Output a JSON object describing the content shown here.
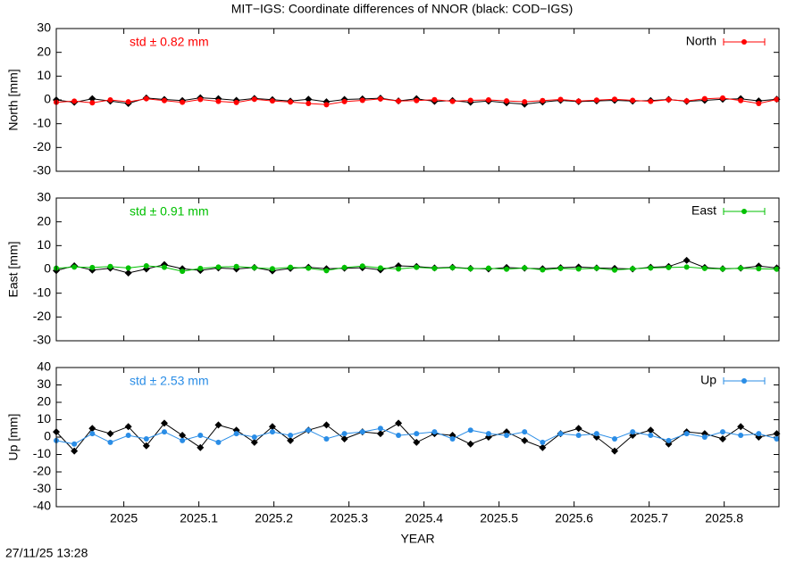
{
  "chart_data": [
    {
      "type": "line",
      "title": "MIT−IGS: Coordinate differences of NNOR (black: COD−IGS)",
      "ylabel": "North [mm]",
      "annotation": "std ± 0.82 mm",
      "xlim": [
        2024.91,
        2025.873
      ],
      "xticks": [
        2025,
        2025.1,
        2025.2,
        2025.3,
        2025.4,
        2025.5,
        2025.6,
        2025.7,
        2025.8
      ],
      "ylim": [
        -30,
        30
      ],
      "yticks": [
        -30,
        -20,
        -10,
        0,
        10,
        20,
        30
      ],
      "legend": "top-right",
      "x": [
        2024.91,
        2024.934,
        2024.958,
        2024.982,
        2025.006,
        2025.03,
        2025.054,
        2025.078,
        2025.102,
        2025.126,
        2025.15,
        2025.174,
        2025.198,
        2025.222,
        2025.246,
        2025.27,
        2025.294,
        2025.318,
        2025.342,
        2025.366,
        2025.39,
        2025.414,
        2025.438,
        2025.462,
        2025.486,
        2025.51,
        2025.534,
        2025.558,
        2025.582,
        2025.606,
        2025.63,
        2025.654,
        2025.678,
        2025.702,
        2025.726,
        2025.75,
        2025.774,
        2025.798,
        2025.822,
        2025.846,
        2025.87
      ],
      "series": [
        {
          "color": "#000000",
          "values": [
            0,
            -1,
            0.5,
            -0.5,
            -1.5,
            0.8,
            0.2,
            -0.3,
            0.9,
            0.5,
            -0.2,
            0.6,
            0.1,
            -0.5,
            0.3,
            -0.8,
            0.2,
            0.4,
            0.7,
            -0.4,
            0.5,
            -0.6,
            -0.3,
            -1,
            -0.5,
            -1.2,
            -1.8,
            -0.9,
            -0.2,
            -0.7,
            -0.4,
            -0.2,
            -0.5,
            -0.3,
            0.2,
            -0.6,
            -0.2,
            0.3,
            0.5,
            -0.4,
            0.3
          ]
        },
        {
          "name": "North",
          "color": "#ff0000",
          "values": [
            -1,
            -0.5,
            -1.2,
            0,
            -0.8,
            0.5,
            -0.3,
            -1,
            0.2,
            -0.6,
            -1.1,
            0.3,
            -0.4,
            -0.9,
            -1.5,
            -2,
            -0.7,
            -0.2,
            0.4,
            -0.5,
            -0.3,
            0.1,
            -0.6,
            -0.2,
            0,
            -0.4,
            -0.8,
            -0.3,
            0.2,
            -0.5,
            -0.1,
            0.3,
            -0.2,
            -0.6,
            0.1,
            -0.4,
            0.5,
            0.8,
            -0.3,
            -1.5,
            0.2
          ]
        }
      ]
    },
    {
      "type": "line",
      "ylabel": "East [mm]",
      "annotation": "std ± 0.91 mm",
      "xlim": [
        2024.91,
        2025.873
      ],
      "xticks": [
        2025,
        2025.1,
        2025.2,
        2025.3,
        2025.4,
        2025.5,
        2025.6,
        2025.7,
        2025.8
      ],
      "ylim": [
        -30,
        30
      ],
      "yticks": [
        -30,
        -20,
        -10,
        0,
        10,
        20,
        30
      ],
      "legend": "top-right",
      "x": [
        2024.91,
        2024.934,
        2024.958,
        2024.982,
        2025.006,
        2025.03,
        2025.054,
        2025.078,
        2025.102,
        2025.126,
        2025.15,
        2025.174,
        2025.198,
        2025.222,
        2025.246,
        2025.27,
        2025.294,
        2025.318,
        2025.342,
        2025.366,
        2025.39,
        2025.414,
        2025.438,
        2025.462,
        2025.486,
        2025.51,
        2025.534,
        2025.558,
        2025.582,
        2025.606,
        2025.63,
        2025.654,
        2025.678,
        2025.702,
        2025.726,
        2025.75,
        2025.774,
        2025.798,
        2025.822,
        2025.846,
        2025.87
      ],
      "series": [
        {
          "color": "#000000",
          "values": [
            -0.5,
            1.5,
            -0.3,
            0.5,
            -1.5,
            0.2,
            2,
            0.3,
            -0.4,
            0.6,
            0.2,
            0.8,
            -0.6,
            0.4,
            0.9,
            0.3,
            0.5,
            0.7,
            -0.2,
            1.5,
            1.2,
            0.6,
            0.9,
            0.4,
            0.2,
            0.8,
            0.5,
            0.3,
            0.7,
            1,
            0.6,
            0.4,
            0.2,
            0.9,
            1.2,
            3.8,
            0.8,
            0.3,
            0.5,
            1.4,
            0.6
          ]
        },
        {
          "name": "East",
          "color": "#00c000",
          "values": [
            0.5,
            1,
            0.8,
            1.2,
            0.6,
            1.5,
            0.9,
            -0.8,
            0.4,
            1,
            1.2,
            0.7,
            0.3,
            0.9,
            0.5,
            -0.5,
            0.8,
            1.4,
            0.6,
            0.2,
            0.9,
            0.4,
            0.7,
            0.3,
            0.5,
            0.1,
            0.6,
            -0.2,
            0.4,
            0.2,
            0.5,
            -0.3,
            0.3,
            0.6,
            0.8,
            1,
            0.4,
            0.2,
            0.5,
            0.3,
            0.1
          ]
        }
      ]
    },
    {
      "type": "line",
      "ylabel": "Up [mm]",
      "xlabel": "YEAR",
      "annotation": "std ± 2.53 mm",
      "xlim": [
        2024.91,
        2025.873
      ],
      "xticks": [
        2025,
        2025.1,
        2025.2,
        2025.3,
        2025.4,
        2025.5,
        2025.6,
        2025.7,
        2025.8
      ],
      "ylim": [
        -40,
        40
      ],
      "yticks": [
        -40,
        -30,
        -20,
        -10,
        0,
        10,
        20,
        30,
        40
      ],
      "legend": "top-right",
      "x": [
        2024.91,
        2024.934,
        2024.958,
        2024.982,
        2025.006,
        2025.03,
        2025.054,
        2025.078,
        2025.102,
        2025.126,
        2025.15,
        2025.174,
        2025.198,
        2025.222,
        2025.246,
        2025.27,
        2025.294,
        2025.318,
        2025.342,
        2025.366,
        2025.39,
        2025.414,
        2025.438,
        2025.462,
        2025.486,
        2025.51,
        2025.534,
        2025.558,
        2025.582,
        2025.606,
        2025.63,
        2025.654,
        2025.678,
        2025.702,
        2025.726,
        2025.75,
        2025.774,
        2025.798,
        2025.822,
        2025.846,
        2025.87
      ],
      "series": [
        {
          "color": "#000000",
          "values": [
            3,
            -8,
            5,
            2,
            6,
            -5,
            8,
            1,
            -6,
            7,
            4,
            -3,
            6,
            -2,
            4,
            7,
            -1,
            3,
            2,
            8,
            -3,
            2,
            1,
            -4,
            0,
            3,
            -2,
            -6,
            2,
            5,
            0,
            -8,
            1,
            4,
            -4,
            3,
            2,
            -1,
            6,
            0,
            2
          ]
        },
        {
          "name": "Up",
          "color": "#2a8de6",
          "values": [
            -2,
            -4,
            2,
            -3,
            1,
            -1,
            3,
            -2,
            1,
            -3,
            2,
            0,
            3,
            1,
            4,
            -1,
            2,
            3,
            5,
            1,
            2,
            3,
            -1,
            4,
            2,
            1,
            3,
            -3,
            2,
            1,
            2,
            -1,
            3,
            1,
            -2,
            2,
            0,
            3,
            1,
            2,
            -1
          ]
        }
      ]
    }
  ],
  "footer": {
    "timestamp": "27/11/25 13:28"
  }
}
